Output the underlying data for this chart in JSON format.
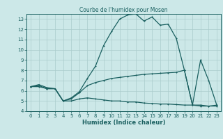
{
  "title": "Courbe de l'humidex pour Mosen",
  "xlabel": "Humidex (Indice chaleur)",
  "ylabel": "",
  "bg_color": "#cce8e8",
  "grid_color": "#aacccc",
  "line_color": "#1a6060",
  "xlim": [
    -0.5,
    23.5
  ],
  "ylim": [
    4,
    13.5
  ],
  "xticks": [
    0,
    1,
    2,
    3,
    4,
    5,
    6,
    7,
    8,
    9,
    10,
    11,
    12,
    13,
    14,
    15,
    16,
    17,
    18,
    19,
    20,
    21,
    22,
    23
  ],
  "yticks": [
    4,
    5,
    6,
    7,
    8,
    9,
    10,
    11,
    12,
    13
  ],
  "series": [
    [
      0,
      6.4
    ],
    [
      1,
      6.6
    ],
    [
      2,
      6.3
    ],
    [
      3,
      6.2
    ],
    [
      4,
      5.0
    ],
    [
      5,
      5.3
    ],
    [
      6,
      5.9
    ],
    [
      7,
      7.2
    ],
    [
      8,
      8.4
    ],
    [
      9,
      10.4
    ],
    [
      10,
      11.8
    ],
    [
      11,
      13.0
    ],
    [
      12,
      13.4
    ],
    [
      13,
      13.5
    ],
    [
      14,
      12.8
    ],
    [
      15,
      13.2
    ],
    [
      16,
      12.4
    ],
    [
      17,
      12.5
    ],
    [
      18,
      11.1
    ],
    [
      19,
      8.0
    ],
    [
      20,
      4.6
    ],
    [
      21,
      9.0
    ],
    [
      22,
      7.0
    ],
    [
      23,
      4.6
    ]
  ],
  "series2": [
    [
      0,
      6.4
    ],
    [
      1,
      6.5
    ],
    [
      2,
      6.2
    ],
    [
      3,
      6.2
    ],
    [
      4,
      5.0
    ],
    [
      5,
      5.2
    ],
    [
      6,
      5.8
    ],
    [
      7,
      6.5
    ],
    [
      8,
      6.8
    ],
    [
      9,
      7.0
    ],
    [
      10,
      7.2
    ],
    [
      11,
      7.3
    ],
    [
      12,
      7.4
    ],
    [
      13,
      7.5
    ],
    [
      14,
      7.6
    ],
    [
      15,
      7.65
    ],
    [
      16,
      7.7
    ],
    [
      17,
      7.75
    ],
    [
      18,
      7.8
    ],
    [
      19,
      8.0
    ],
    [
      20,
      4.6
    ],
    [
      21,
      4.5
    ],
    [
      22,
      4.5
    ],
    [
      23,
      4.6
    ]
  ],
  "series3": [
    [
      0,
      6.4
    ],
    [
      1,
      6.4
    ],
    [
      2,
      6.2
    ],
    [
      3,
      6.2
    ],
    [
      4,
      5.0
    ],
    [
      5,
      5.0
    ],
    [
      6,
      5.2
    ],
    [
      7,
      5.3
    ],
    [
      8,
      5.2
    ],
    [
      9,
      5.1
    ],
    [
      10,
      5.0
    ],
    [
      11,
      5.0
    ],
    [
      12,
      4.9
    ],
    [
      13,
      4.9
    ],
    [
      14,
      4.8
    ],
    [
      15,
      4.75
    ],
    [
      16,
      4.7
    ],
    [
      17,
      4.7
    ],
    [
      18,
      4.65
    ],
    [
      19,
      4.6
    ],
    [
      20,
      4.6
    ],
    [
      21,
      4.6
    ],
    [
      22,
      4.5
    ],
    [
      23,
      4.5
    ]
  ]
}
